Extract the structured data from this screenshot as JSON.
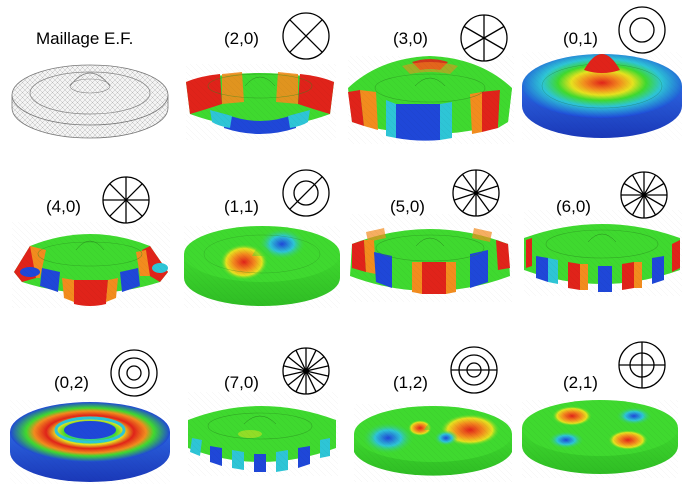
{
  "panels": [
    {
      "label": "Maillage E.F.",
      "kind": "mesh"
    },
    {
      "label": "(2,0)",
      "kind": "mode",
      "n": 2,
      "m": 0
    },
    {
      "label": "(3,0)",
      "kind": "mode",
      "n": 3,
      "m": 0
    },
    {
      "label": "(0,1)",
      "kind": "mode",
      "n": 0,
      "m": 1
    },
    {
      "label": "(4,0)",
      "kind": "mode",
      "n": 4,
      "m": 0
    },
    {
      "label": "(1,1)",
      "kind": "mode",
      "n": 1,
      "m": 1
    },
    {
      "label": "(5,0)",
      "kind": "mode",
      "n": 5,
      "m": 0
    },
    {
      "label": "(6,0)",
      "kind": "mode",
      "n": 6,
      "m": 0
    },
    {
      "label": "(0,2)",
      "kind": "mode",
      "n": 0,
      "m": 2
    },
    {
      "label": "(7,0)",
      "kind": "mode",
      "n": 7,
      "m": 0
    },
    {
      "label": "(1,2)",
      "kind": "mode",
      "n": 1,
      "m": 2
    },
    {
      "label": "(2,1)",
      "kind": "mode",
      "n": 2,
      "m": 1
    }
  ],
  "colors": {
    "red": "#e0231a",
    "orange": "#f28c1e",
    "yellow": "#e6e21f",
    "green": "#3fd92f",
    "cyan": "#2ec5d6",
    "blue": "#1f47d8",
    "mesh": "#f2f2f2",
    "mesh_line": "#9a9a9a"
  }
}
